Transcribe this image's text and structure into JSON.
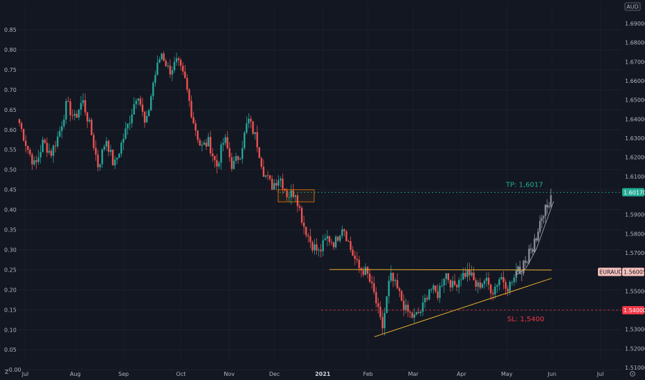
{
  "currency": "AUD",
  "symbol": "EURAUD",
  "left_axis": {
    "ticks": [
      "0.85",
      "0.80",
      "0.75",
      "0.70",
      "0.65",
      "0.60",
      "0.55",
      "0.50",
      "0.45",
      "0.40",
      "0.35",
      "0.30",
      "0.25",
      "0.20",
      "0.15",
      "0.10",
      "0.05",
      "−0.00"
    ],
    "values": [
      0.85,
      0.8,
      0.75,
      0.7,
      0.65,
      0.6,
      0.55,
      0.5,
      0.45,
      0.4,
      0.35,
      0.3,
      0.25,
      0.2,
      0.15,
      0.1,
      0.05,
      0.0
    ]
  },
  "right_axis": {
    "ticks": [
      "1.69000",
      "1.68000",
      "1.67000",
      "1.66000",
      "1.65000",
      "1.64000",
      "1.63000",
      "1.62000",
      "1.61000",
      "1.59000",
      "1.58000",
      "1.57000",
      "1.55000",
      "1.53000",
      "1.52000",
      "1.51000"
    ],
    "values": [
      1.69,
      1.68,
      1.67,
      1.66,
      1.65,
      1.64,
      1.63,
      1.62,
      1.61,
      1.59,
      1.58,
      1.57,
      1.55,
      1.53,
      1.52,
      1.51
    ]
  },
  "x_axis": {
    "labels": [
      "Jul",
      "Aug",
      "Sep",
      "Oct",
      "Nov",
      "Dec",
      "2021",
      "Feb",
      "Mar",
      "Apr",
      "May",
      "Jun",
      "Jul"
    ],
    "label_x_fraction": [
      0.012,
      0.095,
      0.175,
      0.27,
      0.35,
      0.425,
      0.505,
      0.58,
      0.655,
      0.735,
      0.81,
      0.885,
      0.965
    ],
    "bold_label": "2021"
  },
  "annotations": {
    "tp_label": "TP: 1,6017",
    "sl_label": "SL: 1,5400",
    "tp_price_tag": "1.60170",
    "sl_price_tag": "1.54000",
    "current_price_tag": "1.56005",
    "z_label": "Z",
    "gear": "gear-icon"
  },
  "chart_data": {
    "type": "candlestick",
    "title": "",
    "xlabel": "",
    "ylabel": "",
    "currency": "AUD",
    "ylim_right": [
      1.505,
      1.695
    ],
    "tp": 1.6017,
    "sl": 1.54,
    "last_price": 1.56005,
    "resistance_level": 1.5613,
    "support_trendline": [
      {
        "date": "2021-02-22",
        "price": 1.5261
      },
      {
        "date": "2021-06-12",
        "price": 1.5567
      }
    ],
    "highlight_zone": {
      "from": "2020-12-09",
      "to": "2020-12-31",
      "low": 1.5967,
      "high": 1.603
    },
    "projection_path": [
      1.5585,
      1.562,
      1.559,
      1.567,
      1.564,
      1.573,
      1.57,
      1.58,
      1.577,
      1.588,
      1.585,
      1.595,
      1.592,
      1.6017
    ],
    "path_keypoints": [
      1.638,
      1.625,
      1.615,
      1.628,
      1.622,
      1.632,
      1.648,
      1.64,
      1.65,
      1.635,
      1.615,
      1.63,
      1.615,
      1.628,
      1.64,
      1.655,
      1.635,
      1.66,
      1.675,
      1.665,
      1.67,
      1.66,
      1.64,
      1.625,
      1.628,
      1.615,
      1.63,
      1.615,
      1.622,
      1.64,
      1.63,
      1.612,
      1.605,
      1.61,
      1.6,
      1.602,
      1.585,
      1.575,
      1.57,
      1.578,
      1.575,
      1.585,
      1.572,
      1.562,
      1.56,
      1.548,
      1.53,
      1.558,
      1.55,
      1.54,
      1.536,
      1.54,
      1.552,
      1.548,
      1.56,
      1.552,
      1.558,
      1.56,
      1.552,
      1.556,
      1.55,
      1.558,
      1.552,
      1.5585
    ]
  },
  "colors": {
    "background": "#131722",
    "up": "#26a69a",
    "down": "#ef5350",
    "projection": "#9598a1",
    "tp": "#22ab94",
    "sl": "#f23645",
    "trend": "#f0b429"
  }
}
